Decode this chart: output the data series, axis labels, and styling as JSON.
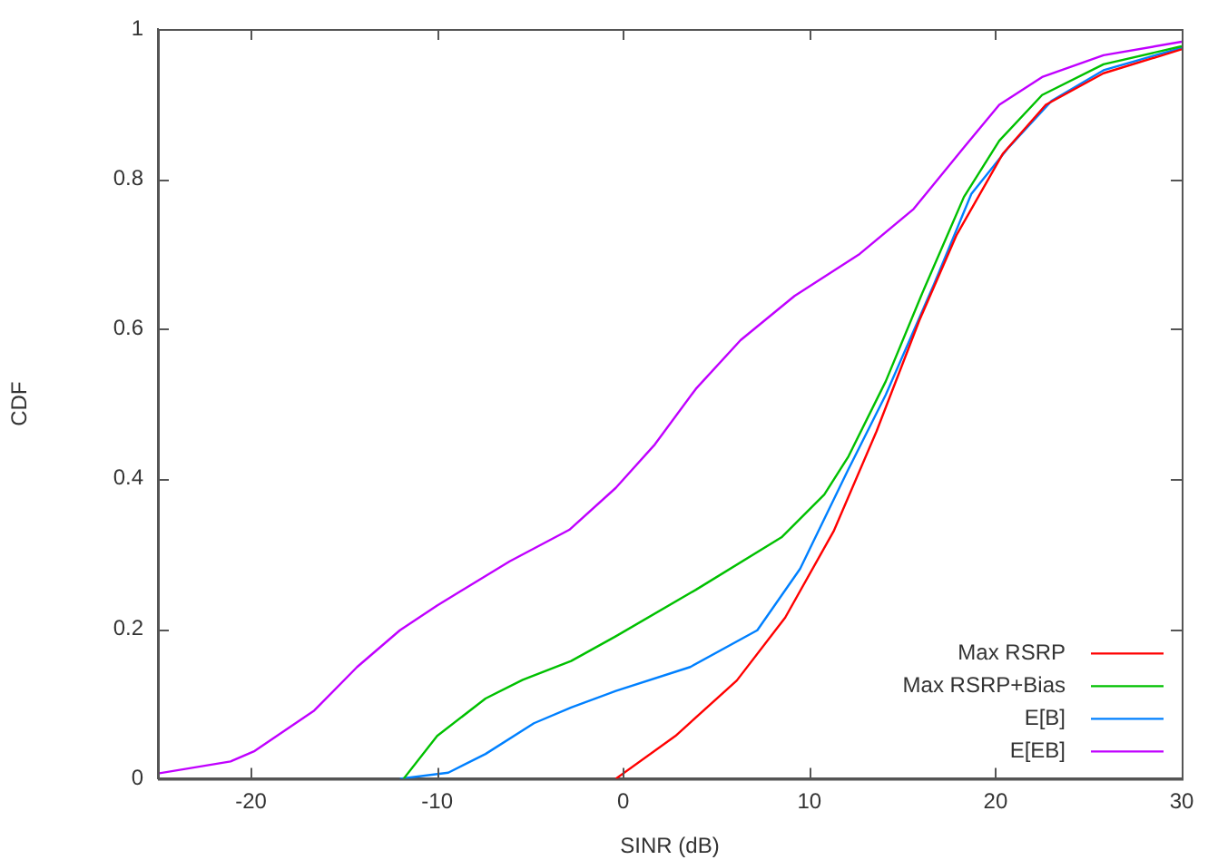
{
  "chart_data": {
    "type": "line",
    "xlabel": "SINR (dB)",
    "ylabel": "CDF",
    "xlim": [
      -25,
      30
    ],
    "ylim": [
      0,
      1
    ],
    "xticks": [
      -20,
      -10,
      0,
      10,
      20,
      30
    ],
    "yticks": [
      0,
      0.2,
      0.4,
      0.6,
      0.8,
      1
    ],
    "grid": false,
    "legend": "bottom right",
    "marker": "none",
    "line_style": "solid",
    "series": [
      {
        "name": "Max RSRP",
        "color": "#ff0000",
        "x": [
          -0.4,
          2.8,
          6.1,
          8.7,
          11.3,
          13.6,
          15.9,
          17.9,
          20.4,
          22.7,
          25.8,
          30
        ],
        "values": [
          0,
          0.057,
          0.131,
          0.215,
          0.33,
          0.463,
          0.611,
          0.725,
          0.834,
          0.899,
          0.941,
          0.973
        ]
      },
      {
        "name": "Max RSRP+Bias",
        "color": "#00c000",
        "x": [
          -11.8,
          -10,
          -7.4,
          -5.4,
          -2.8,
          -0.4,
          3.9,
          8.5,
          10.8,
          12.1,
          14.1,
          16.0,
          18.3,
          20.2,
          22.5,
          25.8,
          30
        ],
        "values": [
          0,
          0.057,
          0.107,
          0.132,
          0.157,
          0.19,
          0.252,
          0.322,
          0.379,
          0.43,
          0.53,
          0.644,
          0.776,
          0.851,
          0.912,
          0.953,
          0.977
        ]
      },
      {
        "name": "E[B]",
        "color": "#0080ff",
        "x": [
          -12,
          -9.4,
          -7.4,
          -4.8,
          -2.8,
          -0.4,
          3.6,
          7.2,
          9.5,
          12.1,
          14.1,
          16.7,
          18.7,
          20.7,
          23,
          25.8,
          30
        ],
        "values": [
          0,
          0.008,
          0.033,
          0.074,
          0.095,
          0.117,
          0.149,
          0.198,
          0.28,
          0.413,
          0.512,
          0.66,
          0.78,
          0.842,
          0.904,
          0.945,
          0.975
        ]
      },
      {
        "name": "E[EB]",
        "color": "#c000ff",
        "x": [
          -25,
          -21.1,
          -19.8,
          -16.6,
          -14.3,
          -12,
          -10,
          -6.1,
          -2.9,
          -0.4,
          1.7,
          3.9,
          6.3,
          9.2,
          12.7,
          15.6,
          18.3,
          20.2,
          22.5,
          25.8,
          30
        ],
        "values": [
          0.007,
          0.023,
          0.037,
          0.091,
          0.149,
          0.198,
          0.231,
          0.29,
          0.332,
          0.388,
          0.446,
          0.52,
          0.585,
          0.644,
          0.7,
          0.76,
          0.842,
          0.899,
          0.936,
          0.965,
          0.983
        ]
      }
    ]
  }
}
